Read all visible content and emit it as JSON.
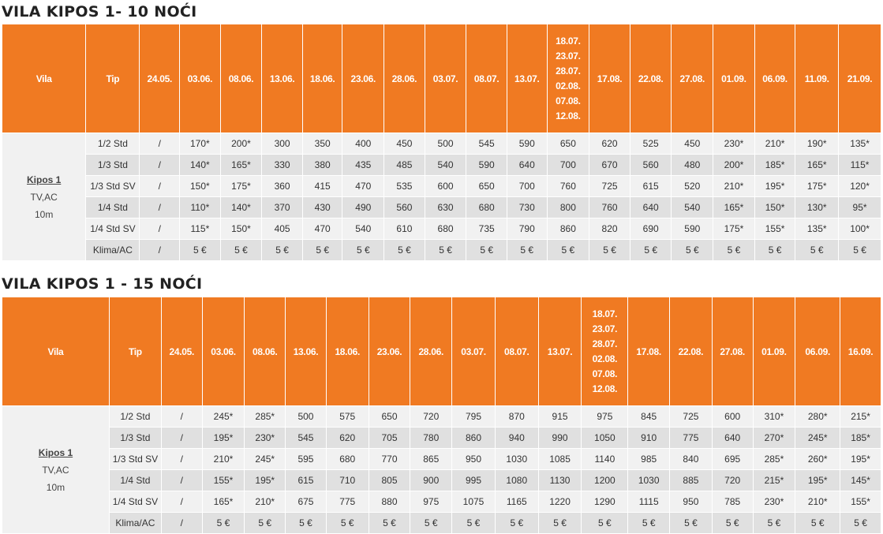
{
  "tables": [
    {
      "title": "VILA KIPOS 1- 10 NOĆI",
      "header": {
        "vila": "Vila",
        "tip": "Tip",
        "dates": [
          "24.05.",
          "03.06.",
          "08.06.",
          "13.06.",
          "18.06.",
          "23.06.",
          "28.06.",
          "03.07.",
          "08.07.",
          "13.07.",
          "18.07. 23.07. 28.07. 02.08. 07.08. 12.08.",
          "17.08.",
          "22.08.",
          "27.08.",
          "01.09.",
          "06.09.",
          "11.09.",
          "21.09."
        ]
      },
      "villa": {
        "name": "Kipos 1",
        "features": "TV,AC",
        "distance": "10m"
      },
      "rows": [
        {
          "tip": "1/2 Std",
          "cells": [
            "/",
            "170*",
            "200*",
            "300",
            "350",
            "400",
            "450",
            "500",
            "545",
            "590",
            "650",
            "620",
            "525",
            "450",
            "230*",
            "210*",
            "190*",
            "135*"
          ]
        },
        {
          "tip": "1/3 Std",
          "cells": [
            "/",
            "140*",
            "165*",
            "330",
            "380",
            "435",
            "485",
            "540",
            "590",
            "640",
            "700",
            "670",
            "560",
            "480",
            "200*",
            "185*",
            "165*",
            "115*"
          ]
        },
        {
          "tip": "1/3 Std SV",
          "cells": [
            "/",
            "150*",
            "175*",
            "360",
            "415",
            "470",
            "535",
            "600",
            "650",
            "700",
            "760",
            "725",
            "615",
            "520",
            "210*",
            "195*",
            "175*",
            "120*"
          ]
        },
        {
          "tip": "1/4 Std",
          "cells": [
            "/",
            "110*",
            "140*",
            "370",
            "430",
            "490",
            "560",
            "630",
            "680",
            "730",
            "800",
            "760",
            "640",
            "540",
            "165*",
            "150*",
            "130*",
            "95*"
          ]
        },
        {
          "tip": "1/4 Std SV",
          "cells": [
            "/",
            "115*",
            "150*",
            "405",
            "470",
            "540",
            "610",
            "680",
            "735",
            "790",
            "860",
            "820",
            "690",
            "590",
            "175*",
            "155*",
            "135*",
            "100*"
          ]
        },
        {
          "tip": "Klima/AC",
          "cells": [
            "/",
            "5 €",
            "5 €",
            "5 €",
            "5 €",
            "5 €",
            "5 €",
            "5 €",
            "5 €",
            "5 €",
            "5 €",
            "5 €",
            "5 €",
            "5 €",
            "5 €",
            "5 €",
            "5 €",
            "5 €"
          ]
        }
      ]
    },
    {
      "title": "VILA KIPOS 1 - 15 NOĆI",
      "header": {
        "vila": "Vila",
        "tip": "Tip",
        "dates": [
          "24.05.",
          "03.06.",
          "08.06.",
          "13.06.",
          "18.06.",
          "23.06.",
          "28.06.",
          "03.07.",
          "08.07.",
          "13.07.",
          "18.07. 23.07. 28.07. 02.08. 07.08. 12.08.",
          "17.08.",
          "22.08.",
          "27.08.",
          "01.09.",
          "06.09.",
          "16.09."
        ]
      },
      "villa": {
        "name": "Kipos 1",
        "features": "TV,AC",
        "distance": "10m"
      },
      "rows": [
        {
          "tip": "1/2 Std",
          "cells": [
            "/",
            "245*",
            "285*",
            "500",
            "575",
            "650",
            "720",
            "795",
            "870",
            "915",
            "975",
            "845",
            "725",
            "600",
            "310*",
            "280*",
            "215*"
          ]
        },
        {
          "tip": "1/3 Std",
          "cells": [
            "/",
            "195*",
            "230*",
            "545",
            "620",
            "705",
            "780",
            "860",
            "940",
            "990",
            "1050",
            "910",
            "775",
            "640",
            "270*",
            "245*",
            "185*"
          ]
        },
        {
          "tip": "1/3 Std SV",
          "cells": [
            "/",
            "210*",
            "245*",
            "595",
            "680",
            "770",
            "865",
            "950",
            "1030",
            "1085",
            "1140",
            "985",
            "840",
            "695",
            "285*",
            "260*",
            "195*"
          ]
        },
        {
          "tip": "1/4 Std",
          "cells": [
            "/",
            "155*",
            "195*",
            "615",
            "710",
            "805",
            "900",
            "995",
            "1080",
            "1130",
            "1200",
            "1030",
            "885",
            "720",
            "215*",
            "195*",
            "145*"
          ]
        },
        {
          "tip": "1/4 Std SV",
          "cells": [
            "/",
            "165*",
            "210*",
            "675",
            "775",
            "880",
            "975",
            "1075",
            "1165",
            "1220",
            "1290",
            "1115",
            "950",
            "785",
            "230*",
            "210*",
            "155*"
          ]
        },
        {
          "tip": "Klima/AC",
          "cells": [
            "/",
            "5 €",
            "5 €",
            "5 €",
            "5 €",
            "5 €",
            "5 €",
            "5 €",
            "5 €",
            "5 €",
            "5 €",
            "5 €",
            "5 €",
            "5 €",
            "5 €",
            "5 €",
            "5 €"
          ]
        }
      ]
    }
  ]
}
